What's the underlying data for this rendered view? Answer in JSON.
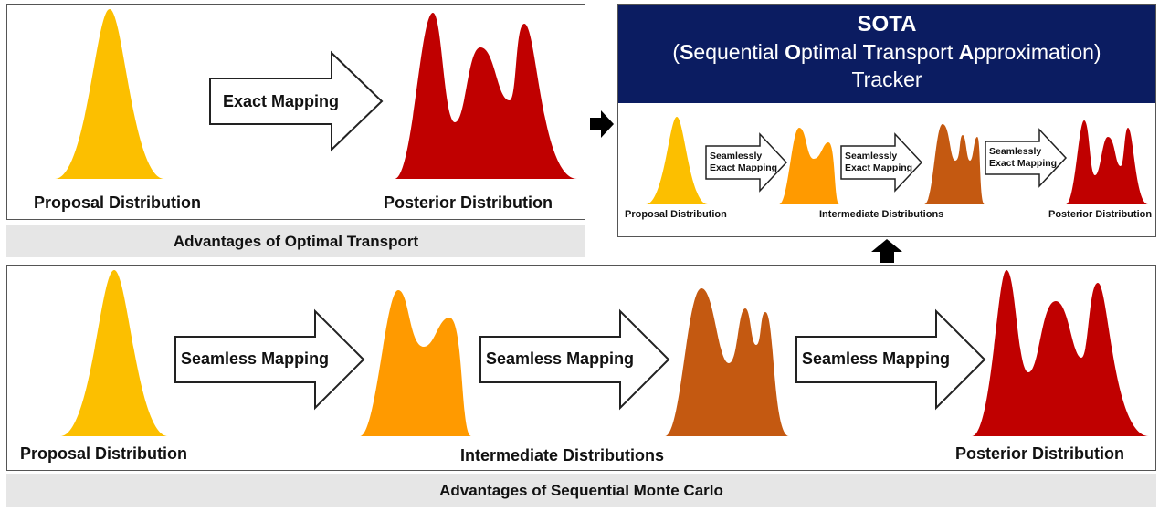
{
  "colors": {
    "proposal": "#fcbf00",
    "intermediate1": "#ff9a00",
    "intermediate2": "#c45911",
    "posterior": "#c00000",
    "sota_header": "#0b1c61",
    "banner_bg": "#e6e6e6"
  },
  "ot_panel": {
    "proposal_label": "Proposal Distribution",
    "arrow_label": "Exact Mapping",
    "posterior_label": "Posterior Distribution",
    "banner": "Advantages of Optimal Transport"
  },
  "sota_panel": {
    "title": "SOTA",
    "subtitle_parts": [
      "(",
      "S",
      "equential ",
      "O",
      "ptimal ",
      "T",
      "ransport ",
      "A",
      "pproximation)"
    ],
    "tracker": "Tracker",
    "arrow_label_line1": "Seamlessly",
    "arrow_label_line2": "Exact Mapping",
    "proposal_label": "Proposal Distribution",
    "intermediate_label": "Intermediate Distributions",
    "posterior_label": "Posterior Distribution"
  },
  "smc_panel": {
    "proposal_label": "Proposal Distribution",
    "arrow_label": "Seamless Mapping",
    "intermediate_label": "Intermediate Distributions",
    "posterior_label": "Posterior Distribution",
    "banner": "Advantages of Sequential Monte Carlo"
  },
  "connectors": {
    "right_arrow_icon": "right-block-arrow-icon",
    "up_arrow_icon": "up-block-arrow-icon"
  }
}
